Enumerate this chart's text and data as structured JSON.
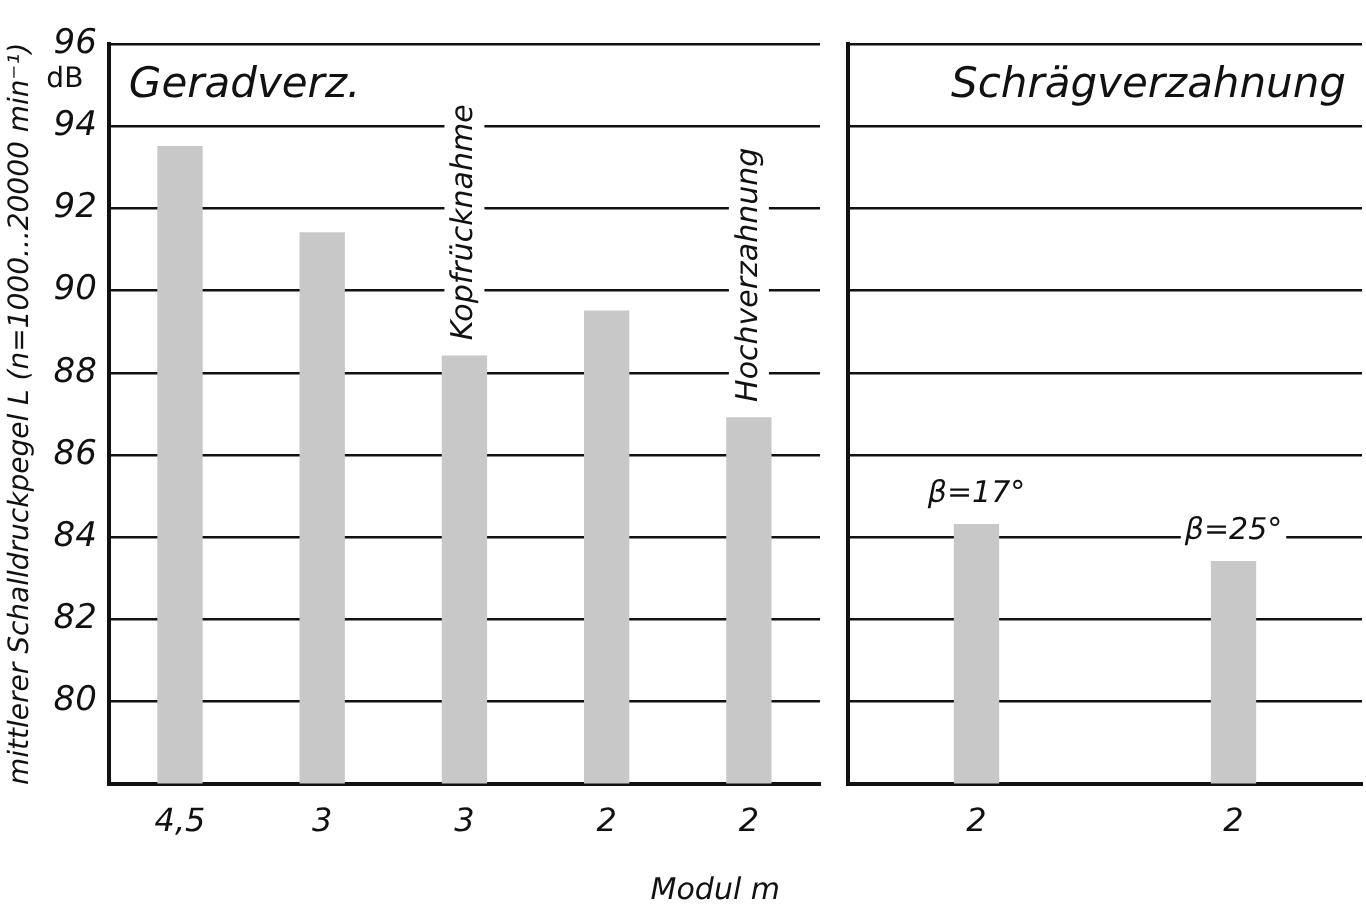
{
  "chart_data": [
    {
      "type": "bar",
      "title": "Geradverz.",
      "xlabel": "Modul m",
      "ylabel": "mittlerer Schalldruckpegel L (n=1000...20000 min⁻¹)",
      "categories": [
        "4,5",
        "3",
        "3",
        "2",
        "2"
      ],
      "values": [
        93.5,
        91.4,
        88.4,
        89.5,
        86.9
      ],
      "color": "#c8c8c8",
      "ylim": [
        78,
        96
      ],
      "yticks": [
        80,
        82,
        84,
        86,
        88,
        90,
        92,
        94,
        96
      ],
      "grid": "y",
      "annotations": [
        "dB",
        {
          "text": "Kopfrücknahme",
          "y": 88.4
        },
        {
          "text": "Hochverzahnung",
          "y": 86.9
        }
      ]
    },
    {
      "type": "bar",
      "title": "Schrägverzahnung",
      "categories": [
        "2",
        "2"
      ],
      "values": [
        84.3,
        83.4
      ],
      "color": "#c8c8c8",
      "ylim": [
        78,
        96
      ],
      "yticks": [
        80,
        82,
        84,
        86,
        88,
        90,
        92,
        94,
        96
      ],
      "grid": "y",
      "tick_labels": "x",
      "annotations": [
        {
          "text": "β=17°",
          "y": 84.3
        },
        {
          "text": "β=25°",
          "y": 83.4
        }
      ]
    }
  ]
}
